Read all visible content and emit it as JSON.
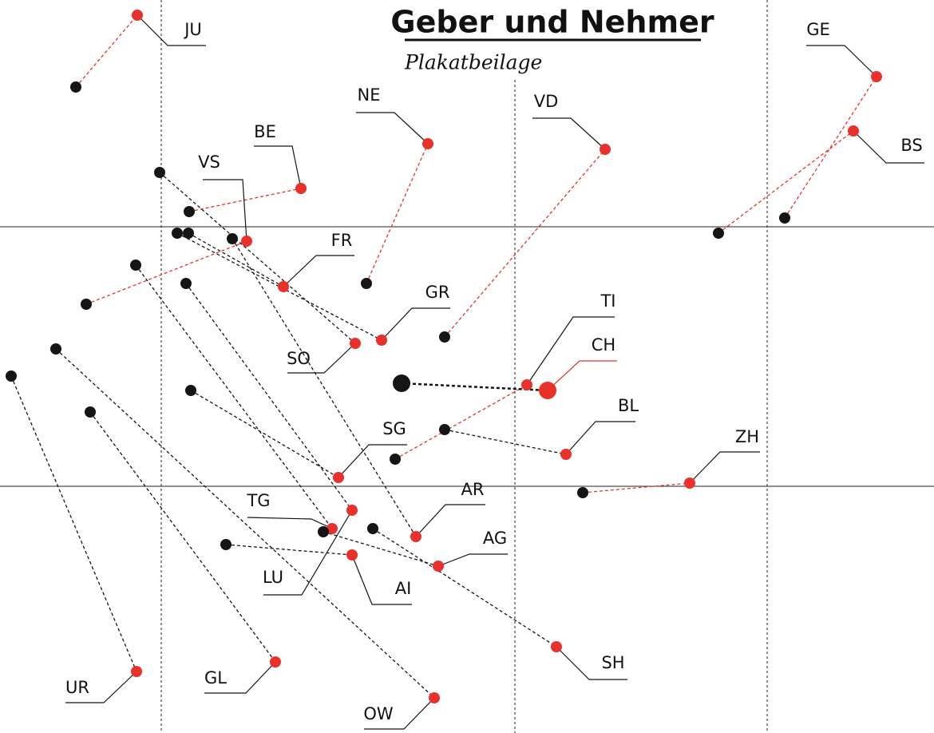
{
  "title": "Geber und Nehmer",
  "subtitle": "Plakatbeilage",
  "cantons": [
    {
      "label": "JU"
    },
    {
      "label": "GE"
    },
    {
      "label": "BS"
    },
    {
      "label": "NE"
    },
    {
      "label": "VD"
    },
    {
      "label": "BE"
    },
    {
      "label": "VS"
    },
    {
      "label": "FR"
    },
    {
      "label": "GR"
    },
    {
      "label": "SO"
    },
    {
      "label": "TI"
    },
    {
      "label": "CH"
    },
    {
      "label": "BL"
    },
    {
      "label": "SG"
    },
    {
      "label": "ZH"
    },
    {
      "label": "AR"
    },
    {
      "label": "TG"
    },
    {
      "label": "AG"
    },
    {
      "label": "LU"
    },
    {
      "label": "AI"
    },
    {
      "label": "UR"
    },
    {
      "label": "GL"
    },
    {
      "label": "SH"
    },
    {
      "label": "OW"
    }
  ]
}
